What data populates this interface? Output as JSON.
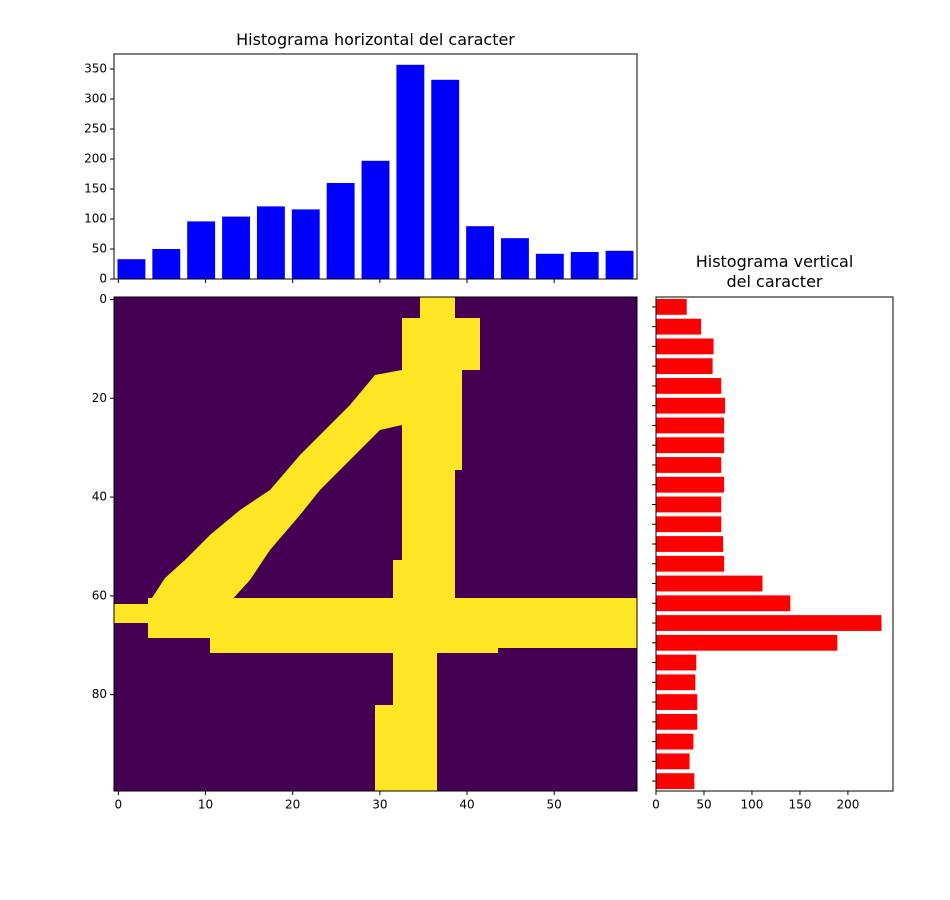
{
  "chart_data": [
    {
      "type": "bar",
      "title": "Histograma horizontal del caracter",
      "color": "#0000ff",
      "x": [
        1.5,
        5.5,
        9.5,
        13.5,
        17.5,
        21.5,
        25.5,
        29.5,
        33.5,
        37.5,
        41.5,
        45.5,
        49.5,
        53.5,
        57.5
      ],
      "values": [
        33,
        50,
        96,
        104,
        121,
        116,
        160,
        197,
        357,
        332,
        88,
        68,
        42,
        45,
        47
      ],
      "xlim": [
        -0.5,
        59.5
      ],
      "ylim": [
        0,
        375
      ],
      "yticks": [
        0,
        50,
        100,
        150,
        200,
        250,
        300,
        350
      ]
    },
    {
      "type": "image",
      "xlim": [
        -0.5,
        59.5
      ],
      "ylim": [
        -0.5,
        99.5
      ],
      "inverted_y": true,
      "xticks": [
        0,
        10,
        20,
        30,
        40,
        50
      ],
      "yticks": [
        0,
        20,
        40,
        60,
        80
      ]
    },
    {
      "type": "barh",
      "title": "Histograma vertical\ndel caracter",
      "color": "#ff0000",
      "y": [
        1.5,
        5.5,
        9.5,
        13.5,
        17.5,
        21.5,
        25.5,
        29.5,
        33.5,
        37.5,
        41.5,
        45.5,
        49.5,
        53.5,
        57.5,
        61.5,
        65.5,
        69.5,
        73.5,
        77.5,
        81.5,
        85.5,
        89.5,
        93.5,
        97.5
      ],
      "values": [
        32,
        47,
        60,
        59,
        68,
        72,
        71,
        71,
        68,
        71,
        68,
        68,
        70,
        71,
        111,
        140,
        235,
        189,
        42,
        41,
        43,
        43,
        39,
        35,
        40
      ],
      "xlim": [
        0,
        247
      ],
      "ylim": [
        -0.5,
        99.5
      ],
      "inverted_y": true,
      "xticks": [
        0,
        50,
        100,
        150,
        200
      ]
    }
  ]
}
